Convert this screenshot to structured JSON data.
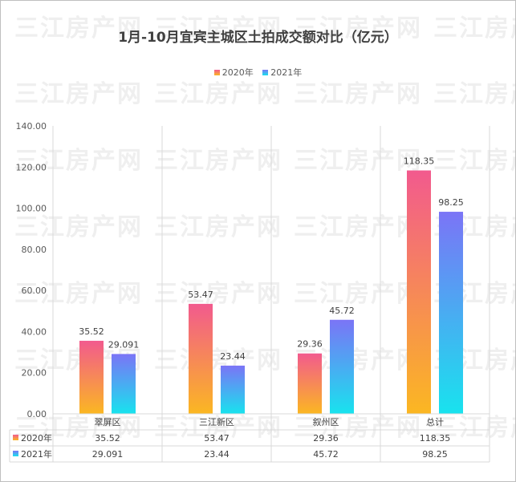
{
  "chart_data": {
    "type": "bar",
    "title": "1月-10月宜宾主城区土拍成交额对比（亿元）",
    "categories": [
      "翠屏区",
      "三江新区",
      "叙州区",
      "总计"
    ],
    "series": [
      {
        "name": "2020年",
        "values": [
          35.52,
          53.47,
          29.36,
          118.35
        ],
        "labels": [
          "35.52",
          "53.47",
          "29.36",
          "118.35"
        ],
        "color_top": "#f25a8e",
        "color_bottom": "#fbb722"
      },
      {
        "name": "2021年",
        "values": [
          29.091,
          23.44,
          45.72,
          98.25
        ],
        "labels": [
          "29.091",
          "23.44",
          "45.72",
          "98.25"
        ],
        "color_top": "#7b74f6",
        "color_bottom": "#18e3ee"
      }
    ],
    "ylim": [
      0,
      140
    ],
    "yticks": [
      "0.00",
      "20.00",
      "40.00",
      "60.00",
      "80.00",
      "100.00",
      "120.00",
      "140.00"
    ],
    "grid": "vertical-category-separators",
    "legend": "top-center",
    "data_table": true
  },
  "watermark": "三江房产网"
}
